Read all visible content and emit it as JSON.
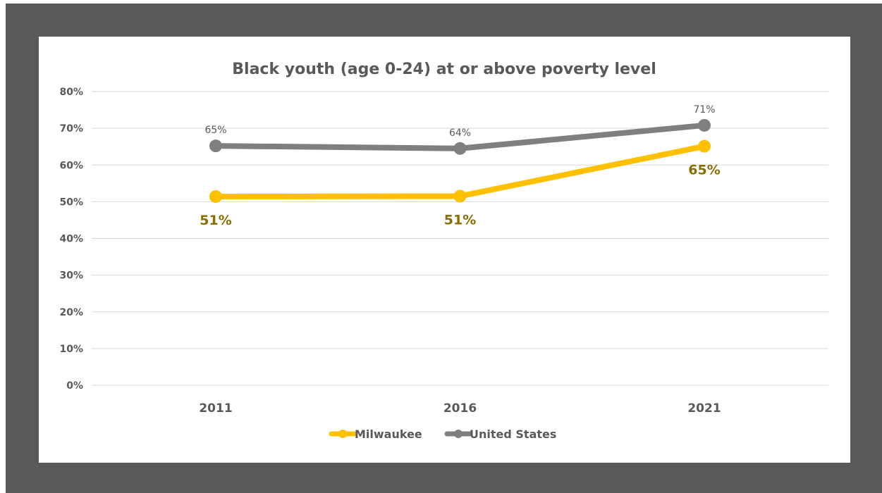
{
  "chart_data": {
    "type": "line",
    "title": "Black youth (age 0-24) at or above poverty level",
    "categories": [
      "2011",
      "2016",
      "2021"
    ],
    "yticks": [
      "0%",
      "10%",
      "20%",
      "30%",
      "40%",
      "50%",
      "60%",
      "70%",
      "80%"
    ],
    "ylim": [
      0,
      80
    ],
    "grid": true,
    "legend_position": "bottom",
    "series": [
      {
        "name": "Milwaukee",
        "values": [
          51.4,
          51.5,
          65.1
        ],
        "labels": [
          "51%",
          "51%",
          "65%"
        ],
        "color": "#FFC000",
        "label_color": "#8A6D00"
      },
      {
        "name": "United States",
        "values": [
          65.2,
          64.5,
          70.8
        ],
        "labels": [
          "65%",
          "64%",
          "71%"
        ],
        "color": "#7F7F7F",
        "label_color": "#595959"
      }
    ]
  },
  "colors": {
    "frame": "#595959",
    "panel": "#FFFFFF",
    "grid": "#D9D9D9",
    "text": "#595959"
  }
}
